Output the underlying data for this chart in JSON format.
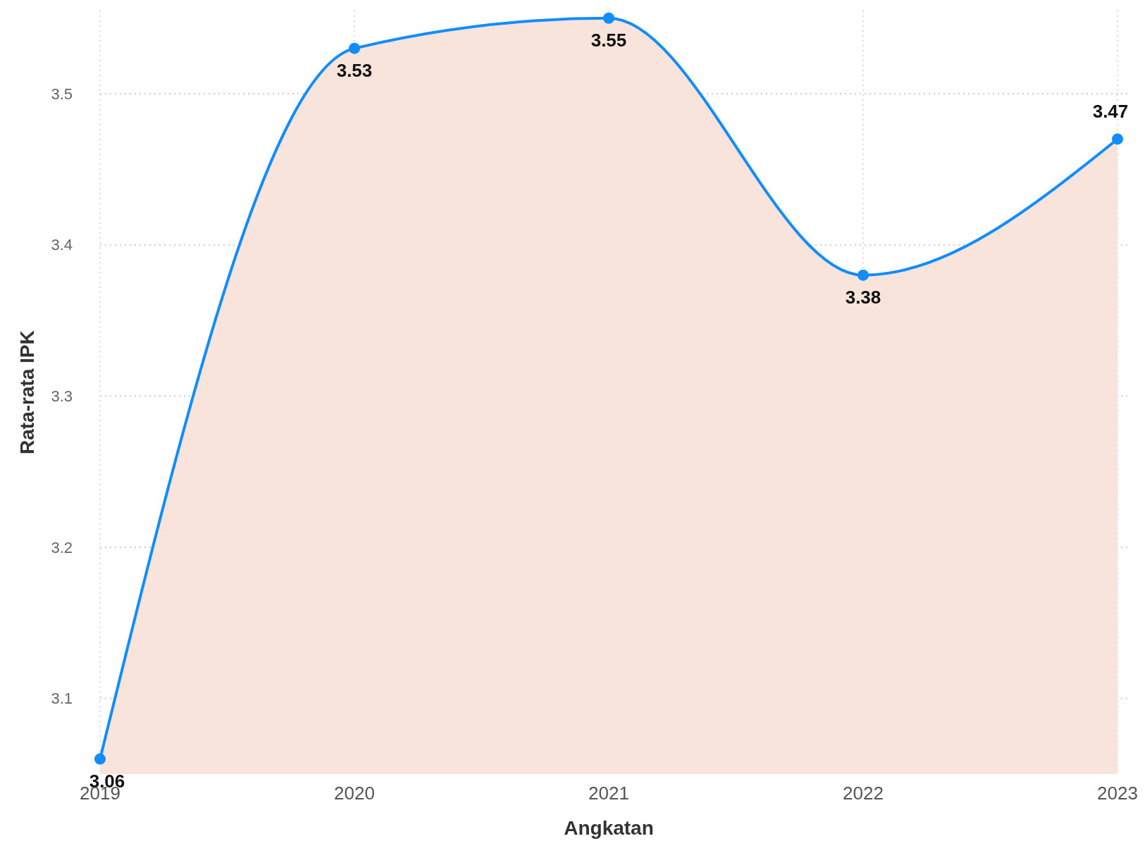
{
  "chart_data": {
    "type": "area",
    "xlabel": "Angkatan",
    "ylabel": "Rata-rata IPK",
    "categories": [
      "2019",
      "2020",
      "2021",
      "2022",
      "2023"
    ],
    "series": [
      {
        "color": "#118dff",
        "values": [
          3.06,
          3.53,
          3.55,
          3.38,
          3.47
        ]
      }
    ],
    "ylim": [
      3.05,
      3.555
    ],
    "yticks": [
      3.1,
      3.2,
      3.3,
      3.4,
      3.5
    ],
    "grid": true,
    "marker": "circle",
    "data_labels": true
  }
}
